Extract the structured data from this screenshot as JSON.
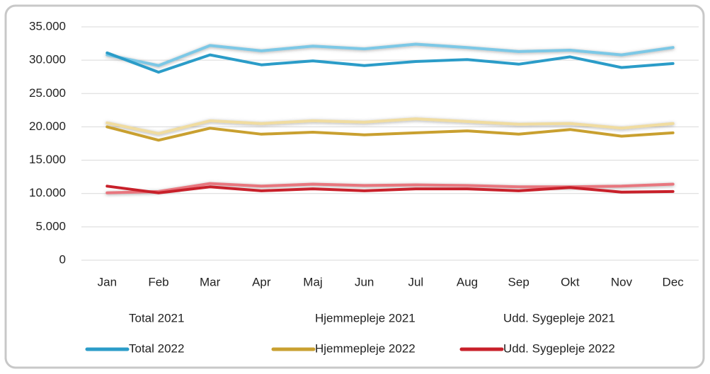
{
  "chart_data": {
    "type": "line",
    "categories": [
      "Jan",
      "Feb",
      "Mar",
      "Apr",
      "Maj",
      "Jun",
      "Jul",
      "Aug",
      "Sep",
      "Okt",
      "Nov",
      "Dec"
    ],
    "series": [
      {
        "name": "Total 2021",
        "color": "#7cc8e6",
        "values": [
          30800,
          29200,
          32200,
          31400,
          32100,
          31700,
          32400,
          31900,
          31300,
          31500,
          30800,
          31900
        ]
      },
      {
        "name": "Hjemmepleje 2021",
        "color": "#f0dca0",
        "values": [
          20600,
          19000,
          20900,
          20500,
          20900,
          20700,
          21200,
          20800,
          20400,
          20500,
          19800,
          20500
        ]
      },
      {
        "name": "Udd. Sygepleje 2021",
        "color": "#e8767e",
        "values": [
          10100,
          10300,
          11500,
          11100,
          11400,
          11200,
          11300,
          11200,
          11000,
          11000,
          11100,
          11400
        ]
      },
      {
        "name": "Total 2022",
        "color": "#2b9cc8",
        "values": [
          31100,
          28200,
          30800,
          29300,
          29900,
          29200,
          29800,
          30100,
          29400,
          30500,
          28900,
          29500
        ]
      },
      {
        "name": "Hjemmepleje 2022",
        "color": "#c9a030",
        "values": [
          20000,
          18000,
          19800,
          18900,
          19200,
          18800,
          19100,
          19400,
          18900,
          19600,
          18600,
          19100
        ]
      },
      {
        "name": "Udd. Sygepleje 2022",
        "color": "#c8202a",
        "values": [
          11100,
          10100,
          11000,
          10400,
          10700,
          10400,
          10700,
          10700,
          10400,
          10900,
          10200,
          10300
        ]
      }
    ],
    "ylim": [
      0,
      35000
    ],
    "yticks": [
      0,
      {
        "value": 5000,
        "label": "5.000"
      },
      {
        "value": 10000,
        "label": "10.000"
      },
      {
        "value": 15000,
        "label": "15.000"
      },
      {
        "value": 20000,
        "label": "20.000"
      },
      {
        "value": 25000,
        "label": "25.000"
      },
      {
        "value": 30000,
        "label": "30.000"
      },
      {
        "value": 35000,
        "label": "35.000"
      }
    ],
    "grid": true,
    "legend": "bottom"
  }
}
